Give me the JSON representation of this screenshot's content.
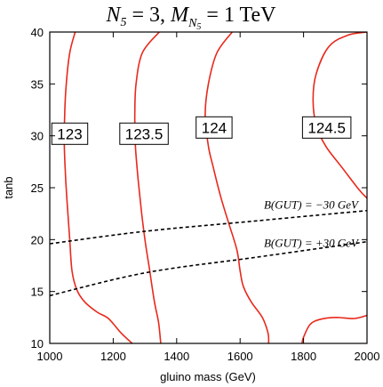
{
  "chart_data": {
    "type": "line",
    "title": "N₅ = 3,  M_N₅ = 1 TeV",
    "title_parts": {
      "n": "N",
      "n_sub": "5",
      "eq1": " = 3,  ",
      "m": "M",
      "m_sub": "N",
      "m_subsub": "5",
      "eq2": " = 1 TeV"
    },
    "xlabel": "gluino mass (GeV)",
    "ylabel": "tanb",
    "xlim": [
      1000,
      2000
    ],
    "ylim": [
      10,
      40
    ],
    "xticks": [
      1000,
      1200,
      1400,
      1600,
      1800,
      2000
    ],
    "yticks": [
      10,
      15,
      20,
      25,
      30,
      35,
      40
    ],
    "grid": false,
    "colors": {
      "contour": "#e8291c",
      "boundary": "#000000"
    },
    "series": [
      {
        "label": "123",
        "style": "solid-red",
        "points": [
          [
            1080,
            40
          ],
          [
            1063,
            38
          ],
          [
            1052,
            35
          ],
          [
            1047,
            32
          ],
          [
            1046,
            29
          ],
          [
            1050,
            26
          ],
          [
            1056,
            23
          ],
          [
            1063,
            20
          ],
          [
            1070,
            17
          ],
          [
            1085,
            15.2
          ],
          [
            1110,
            14
          ],
          [
            1150,
            13
          ],
          [
            1185,
            12.4
          ],
          [
            1225,
            11
          ],
          [
            1260,
            10
          ]
        ]
      },
      {
        "label": "123.5",
        "style": "solid-red",
        "points": [
          [
            1345,
            40
          ],
          [
            1292,
            38
          ],
          [
            1272,
            35
          ],
          [
            1268,
            32
          ],
          [
            1270,
            29
          ],
          [
            1278,
            26
          ],
          [
            1288,
            23
          ],
          [
            1300,
            20
          ],
          [
            1315,
            17
          ],
          [
            1330,
            14
          ],
          [
            1343,
            12
          ],
          [
            1350,
            10
          ]
        ]
      },
      {
        "label": "124",
        "style": "solid-red",
        "points": [
          [
            1575,
            40
          ],
          [
            1527,
            38
          ],
          [
            1500,
            35
          ],
          [
            1490,
            32
          ],
          [
            1500,
            29
          ],
          [
            1515,
            27
          ],
          [
            1540,
            24
          ],
          [
            1565,
            21.5
          ],
          [
            1590,
            19
          ],
          [
            1600,
            17
          ],
          [
            1610,
            15.5
          ],
          [
            1635,
            14
          ],
          [
            1670,
            12.5
          ],
          [
            1688,
            11
          ],
          [
            1690,
            10
          ]
        ]
      },
      {
        "label": "124.5",
        "style": "solid-red",
        "points": [
          [
            2000,
            40
          ],
          [
            1940,
            39.7
          ],
          [
            1880,
            38.6
          ],
          [
            1840,
            36
          ],
          [
            1830,
            33.5
          ],
          [
            1840,
            31
          ],
          [
            1870,
            29
          ],
          [
            1920,
            27
          ],
          [
            1975,
            24.8
          ],
          [
            2000,
            24
          ]
        ]
      },
      {
        "label": "124.5-lower",
        "style": "solid-red",
        "points": [
          [
            2000,
            12.7
          ],
          [
            1960,
            12.4
          ],
          [
            1900,
            12.5
          ],
          [
            1850,
            12.3
          ],
          [
            1820,
            11.8
          ],
          [
            1800,
            10.6
          ],
          [
            1795,
            10
          ]
        ]
      },
      {
        "label": "B(GUT) = −30 GeV",
        "style": "dashed-black",
        "points": [
          [
            1000,
            19.6
          ],
          [
            1300,
            20.8
          ],
          [
            1650,
            21.8
          ],
          [
            2000,
            22.8
          ]
        ]
      },
      {
        "label": "B(GUT) = +30 GeV",
        "style": "dashed-black",
        "points": [
          [
            1000,
            14.6
          ],
          [
            1300,
            16.8
          ],
          [
            1650,
            18.3
          ],
          [
            2000,
            19.8
          ]
        ]
      }
    ],
    "contour_labels": [
      {
        "text": "123",
        "x": 1063,
        "y": 30.2
      },
      {
        "text": "123.5",
        "x": 1297,
        "y": 30.2
      },
      {
        "text": "124",
        "x": 1518,
        "y": 30.8
      },
      {
        "text": "124.5",
        "x": 1873,
        "y": 30.8
      }
    ],
    "annotations": [
      {
        "id": "bgut-minus",
        "parts": [
          "B(GUT) = ",
          "−",
          "30 GeV"
        ],
        "x": 1675,
        "y": 23.0
      },
      {
        "id": "bgut-plus",
        "parts": [
          "B(GUT) = +30 GeV"
        ],
        "x": 1675,
        "y": 19.3
      }
    ]
  }
}
